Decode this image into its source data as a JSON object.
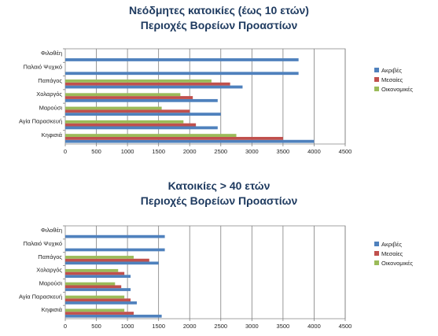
{
  "chart_data": [
    {
      "type": "bar",
      "orientation": "horizontal",
      "title": "Νεόδμητες κατοικίες (έως 10 ετών)",
      "subtitle": "Περιοχές Βορείων Προαστίων",
      "categories": [
        "Φιλοθέη",
        "Παλαιό Ψυχικό",
        "Παπάγος",
        "Χολαργός",
        "Μαρούσι",
        "Αγία Παρασκευή",
        "Κηφισιά"
      ],
      "xlim": [
        0,
        4500
      ],
      "xticks": [
        "0",
        "500",
        "1000",
        "1500",
        "2000",
        "2500",
        "3000",
        "3500",
        "4000",
        "4500"
      ],
      "grid": true,
      "legend_position": "right",
      "series": [
        {
          "name": "Ακριβές",
          "color": "#4f81bd",
          "values": [
            3750,
            3750,
            2850,
            2450,
            2500,
            2450,
            4000
          ]
        },
        {
          "name": "Μεσαίες",
          "color": "#c0504d",
          "values": [
            null,
            null,
            2650,
            2050,
            2000,
            2100,
            3500
          ]
        },
        {
          "name": "Οικονομικές",
          "color": "#9bbb59",
          "values": [
            null,
            null,
            2350,
            1850,
            1550,
            1900,
            2750
          ]
        }
      ]
    },
    {
      "type": "bar",
      "orientation": "horizontal",
      "title": "Κατοικίες > 40 ετών",
      "subtitle": "Περιοχές Βορείων Προαστίων",
      "categories": [
        "Φιλοθέη",
        "Παλαιό Ψυχικό",
        "Παπάγος",
        "Χολαργός",
        "Μαρούσι",
        "Αγία Παρασκευή",
        "Κηφισιά"
      ],
      "xlim": [
        0,
        4500
      ],
      "xticks": [
        "0",
        "500",
        "1000",
        "1500",
        "2000",
        "2500",
        "3000",
        "3500",
        "4000",
        "4500"
      ],
      "grid": true,
      "legend_position": "right",
      "series": [
        {
          "name": "Ακριβές",
          "color": "#4f81bd",
          "values": [
            1600,
            1600,
            1500,
            1050,
            1050,
            1150,
            1550
          ]
        },
        {
          "name": "Μεσαίες",
          "color": "#c0504d",
          "values": [
            null,
            null,
            1350,
            950,
            900,
            1050,
            1100
          ]
        },
        {
          "name": "Οικονομικές",
          "color": "#9bbb59",
          "values": [
            null,
            null,
            1100,
            850,
            800,
            950,
            950
          ]
        }
      ]
    }
  ]
}
